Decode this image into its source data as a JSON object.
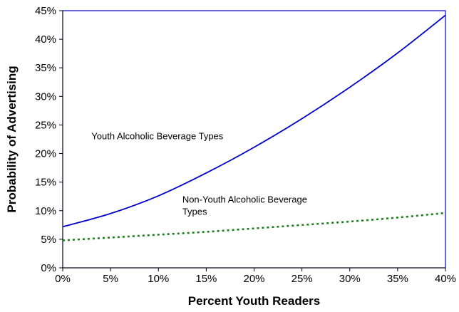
{
  "chart_data": {
    "type": "line",
    "title": "",
    "xlabel": "Percent Youth Readers",
    "ylabel": "Probability of Advertising",
    "xlim": [
      0,
      40
    ],
    "ylim": [
      0,
      45
    ],
    "x_ticks": [
      "0%",
      "5%",
      "10%",
      "15%",
      "20%",
      "25%",
      "30%",
      "35%",
      "40%"
    ],
    "y_ticks": [
      "0%",
      "5%",
      "10%",
      "15%",
      "20%",
      "25%",
      "30%",
      "35%",
      "40%",
      "45%"
    ],
    "grid": false,
    "legend": "none",
    "series": [
      {
        "color": "#0000cc",
        "style": "solid",
        "x": [
          0,
          5,
          10,
          15,
          20,
          25,
          30,
          35,
          40
        ],
        "y": [
          7.2,
          9.5,
          12.6,
          16.6,
          21.1,
          26.1,
          31.6,
          37.6,
          44.2
        ]
      },
      {
        "color": "#1a7f1a",
        "style": "dotted",
        "x": [
          0,
          5,
          10,
          15,
          20,
          25,
          30,
          35,
          40
        ],
        "y": [
          4.8,
          5.3,
          5.8,
          6.3,
          6.9,
          7.5,
          8.1,
          8.8,
          9.6
        ]
      }
    ],
    "annotations": [
      {
        "text": "Youth Alcoholic Beverage Types",
        "x": 3,
        "y": 22.5
      },
      {
        "text": "Non-Youth Alcoholic Beverage",
        "x": 12.5,
        "y": 11.4
      },
      {
        "text": "Types",
        "x": 12.5,
        "y": 9.3
      }
    ]
  }
}
